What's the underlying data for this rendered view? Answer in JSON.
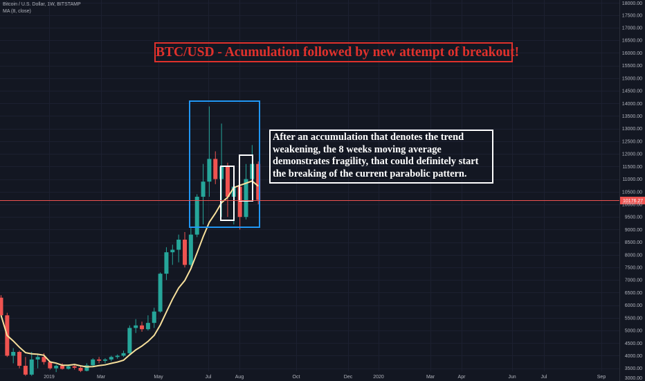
{
  "header": {
    "symbol": "Bitcoin / U.S. Dollar, 1W, BITSTAMP",
    "indicator": "MA (8, close)"
  },
  "annotations": {
    "title": "BTC/USD - Acumulation followed by new attempt of breakout!",
    "comment_lines": [
      "After an accumulation that denotes the trend",
      "weakening, the 8 weeks moving average",
      "demonstrates fragility, that could definitely start",
      "the breaking of the current parabolic pattern."
    ]
  },
  "colors": {
    "background": "#131722",
    "up": "#26a69a",
    "down": "#ef5350",
    "ma": "#f7e09c",
    "box_blue": "#2196f3",
    "box_white": "#ffffff",
    "title_red": "#e0312c",
    "price_line": "#ef5350",
    "axis_text": "#b2b5be"
  },
  "chart_data": {
    "type": "candlestick",
    "timeframe": "1W",
    "y_ticks": [
      3000,
      3500,
      4000,
      4500,
      5000,
      5500,
      6000,
      6500,
      7000,
      7500,
      8000,
      8500,
      9000,
      9500,
      10000,
      10500,
      11000,
      11500,
      12000,
      12500,
      13000,
      13500,
      14000,
      14500,
      15000,
      15500,
      16000,
      16500,
      17000,
      17500,
      18000
    ],
    "y_tick_format": "2 decimals",
    "ylim": [
      3000,
      18000
    ],
    "current_price": {
      "label": "10176.27",
      "value": 10176.27
    },
    "x_labels": [
      "2019",
      "Mar",
      "May",
      "Jul",
      "Aug",
      "Oct",
      "Dec",
      "2020",
      "Mar",
      "Apr",
      "Jun",
      "Jul",
      "Sep"
    ],
    "moving_average": {
      "name": "MA (8, close)",
      "period": 8
    },
    "candles": [
      {
        "o": 6300,
        "h": 6400,
        "l": 5600,
        "c": 5600
      },
      {
        "o": 5600,
        "h": 5700,
        "l": 3950,
        "c": 4000
      },
      {
        "o": 4000,
        "h": 4300,
        "l": 3700,
        "c": 4150
      },
      {
        "o": 4150,
        "h": 4200,
        "l": 3500,
        "c": 3600
      },
      {
        "o": 3600,
        "h": 3950,
        "l": 3200,
        "c": 3250
      },
      {
        "o": 3250,
        "h": 4150,
        "l": 3200,
        "c": 3850
      },
      {
        "o": 3850,
        "h": 4050,
        "l": 3500,
        "c": 3950
      },
      {
        "o": 3950,
        "h": 4100,
        "l": 3650,
        "c": 3750
      },
      {
        "o": 3750,
        "h": 3800,
        "l": 3450,
        "c": 3500
      },
      {
        "o": 3500,
        "h": 3650,
        "l": 3350,
        "c": 3600
      },
      {
        "o": 3600,
        "h": 3700,
        "l": 3450,
        "c": 3480
      },
      {
        "o": 3480,
        "h": 3650,
        "l": 3450,
        "c": 3580
      },
      {
        "o": 3580,
        "h": 3650,
        "l": 3450,
        "c": 3520
      },
      {
        "o": 3520,
        "h": 3600,
        "l": 3350,
        "c": 3400
      },
      {
        "o": 3400,
        "h": 3700,
        "l": 3380,
        "c": 3620
      },
      {
        "o": 3620,
        "h": 3900,
        "l": 3550,
        "c": 3850
      },
      {
        "o": 3850,
        "h": 3950,
        "l": 3700,
        "c": 3800
      },
      {
        "o": 3800,
        "h": 3900,
        "l": 3700,
        "c": 3850
      },
      {
        "o": 3850,
        "h": 4000,
        "l": 3780,
        "c": 3950
      },
      {
        "o": 3950,
        "h": 4050,
        "l": 3880,
        "c": 4000
      },
      {
        "o": 4000,
        "h": 4200,
        "l": 3950,
        "c": 4100
      },
      {
        "o": 4100,
        "h": 5200,
        "l": 4050,
        "c": 5100
      },
      {
        "o": 5100,
        "h": 5450,
        "l": 4900,
        "c": 5200
      },
      {
        "o": 5200,
        "h": 5350,
        "l": 4950,
        "c": 5050
      },
      {
        "o": 5050,
        "h": 5600,
        "l": 5000,
        "c": 5300
      },
      {
        "o": 5300,
        "h": 5900,
        "l": 5100,
        "c": 5750
      },
      {
        "o": 5750,
        "h": 7300,
        "l": 5700,
        "c": 7250
      },
      {
        "o": 7250,
        "h": 8300,
        "l": 7000,
        "c": 8100
      },
      {
        "o": 8100,
        "h": 8400,
        "l": 7600,
        "c": 8200
      },
      {
        "o": 8200,
        "h": 8800,
        "l": 7700,
        "c": 8600
      },
      {
        "o": 8600,
        "h": 8900,
        "l": 7500,
        "c": 7600
      },
      {
        "o": 7600,
        "h": 9100,
        "l": 7500,
        "c": 8800
      },
      {
        "o": 8800,
        "h": 10400,
        "l": 8700,
        "c": 10300
      },
      {
        "o": 10300,
        "h": 11600,
        "l": 9200,
        "c": 10900
      },
      {
        "o": 10900,
        "h": 13880,
        "l": 10300,
        "c": 11800
      },
      {
        "o": 11800,
        "h": 12100,
        "l": 10800,
        "c": 11000
      },
      {
        "o": 11000,
        "h": 13200,
        "l": 9500,
        "c": 11500
      },
      {
        "o": 11500,
        "h": 11650,
        "l": 9500,
        "c": 10300
      },
      {
        "o": 10300,
        "h": 10800,
        "l": 9200,
        "c": 10700
      },
      {
        "o": 10700,
        "h": 10800,
        "l": 9000,
        "c": 9500
      },
      {
        "o": 9500,
        "h": 11600,
        "l": 9400,
        "c": 11000
      },
      {
        "o": 11000,
        "h": 12350,
        "l": 10800,
        "c": 11600
      },
      {
        "o": 11600,
        "h": 11700,
        "l": 10000,
        "c": 10176.27
      }
    ]
  }
}
